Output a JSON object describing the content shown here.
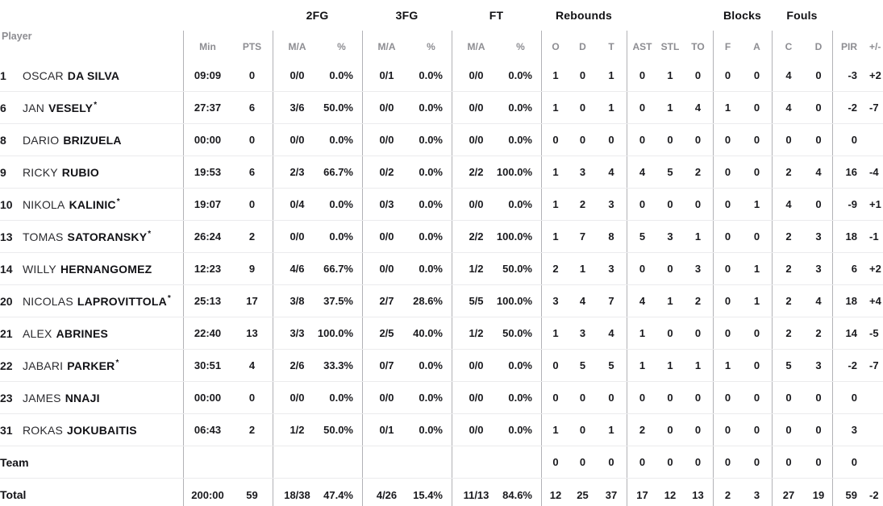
{
  "table": {
    "groups": {
      "fg2": "2FG",
      "fg3": "3FG",
      "ft": "FT",
      "rebounds": "Rebounds",
      "blocks": "Blocks",
      "fouls": "Fouls"
    },
    "header": {
      "player": "Player",
      "min": "Min",
      "pts": "PTS",
      "ma": "M/A",
      "pct": "%",
      "o": "O",
      "d": "D",
      "t": "T",
      "ast": "AST",
      "stl": "STL",
      "to": "TO",
      "f": "F",
      "a": "A",
      "c": "C",
      "pir": "PIR",
      "pm": "+/-"
    },
    "rows": [
      {
        "type": "player",
        "num": "1",
        "first": "OSCAR",
        "last": "DA SILVA",
        "starter": false,
        "min": "09:09",
        "pts": "0",
        "fg2": "0/0",
        "fg2p": "0.0%",
        "fg3": "0/1",
        "fg3p": "0.0%",
        "ft": "0/0",
        "ftp": "0.0%",
        "o": "1",
        "d": "0",
        "t": "1",
        "ast": "0",
        "stl": "1",
        "to": "0",
        "bf": "0",
        "ba": "0",
        "fc": "4",
        "fd": "0",
        "pir": "-3",
        "pm": "+2"
      },
      {
        "type": "player",
        "num": "6",
        "first": "JAN",
        "last": "VESELY",
        "starter": true,
        "min": "27:37",
        "pts": "6",
        "fg2": "3/6",
        "fg2p": "50.0%",
        "fg3": "0/0",
        "fg3p": "0.0%",
        "ft": "0/0",
        "ftp": "0.0%",
        "o": "1",
        "d": "0",
        "t": "1",
        "ast": "0",
        "stl": "1",
        "to": "4",
        "bf": "1",
        "ba": "0",
        "fc": "4",
        "fd": "0",
        "pir": "-2",
        "pm": "-7"
      },
      {
        "type": "player",
        "num": "8",
        "first": "DARIO",
        "last": "BRIZUELA",
        "starter": false,
        "min": "00:00",
        "pts": "0",
        "fg2": "0/0",
        "fg2p": "0.0%",
        "fg3": "0/0",
        "fg3p": "0.0%",
        "ft": "0/0",
        "ftp": "0.0%",
        "o": "0",
        "d": "0",
        "t": "0",
        "ast": "0",
        "stl": "0",
        "to": "0",
        "bf": "0",
        "ba": "0",
        "fc": "0",
        "fd": "0",
        "pir": "0",
        "pm": ""
      },
      {
        "type": "player",
        "num": "9",
        "first": "RICKY",
        "last": "RUBIO",
        "starter": false,
        "min": "19:53",
        "pts": "6",
        "fg2": "2/3",
        "fg2p": "66.7%",
        "fg3": "0/2",
        "fg3p": "0.0%",
        "ft": "2/2",
        "ftp": "100.0%",
        "o": "1",
        "d": "3",
        "t": "4",
        "ast": "4",
        "stl": "5",
        "to": "2",
        "bf": "0",
        "ba": "0",
        "fc": "2",
        "fd": "4",
        "pir": "16",
        "pm": "-4"
      },
      {
        "type": "player",
        "num": "10",
        "first": "NIKOLA",
        "last": "KALINIC",
        "starter": true,
        "min": "19:07",
        "pts": "0",
        "fg2": "0/4",
        "fg2p": "0.0%",
        "fg3": "0/3",
        "fg3p": "0.0%",
        "ft": "0/0",
        "ftp": "0.0%",
        "o": "1",
        "d": "2",
        "t": "3",
        "ast": "0",
        "stl": "0",
        "to": "0",
        "bf": "0",
        "ba": "1",
        "fc": "4",
        "fd": "0",
        "pir": "-9",
        "pm": "+1"
      },
      {
        "type": "player",
        "num": "13",
        "first": "TOMAS",
        "last": "SATORANSKY",
        "starter": true,
        "min": "26:24",
        "pts": "2",
        "fg2": "0/0",
        "fg2p": "0.0%",
        "fg3": "0/0",
        "fg3p": "0.0%",
        "ft": "2/2",
        "ftp": "100.0%",
        "o": "1",
        "d": "7",
        "t": "8",
        "ast": "5",
        "stl": "3",
        "to": "1",
        "bf": "0",
        "ba": "0",
        "fc": "2",
        "fd": "3",
        "pir": "18",
        "pm": "-1"
      },
      {
        "type": "player",
        "num": "14",
        "first": "WILLY",
        "last": "HERNANGOMEZ",
        "starter": false,
        "min": "12:23",
        "pts": "9",
        "fg2": "4/6",
        "fg2p": "66.7%",
        "fg3": "0/0",
        "fg3p": "0.0%",
        "ft": "1/2",
        "ftp": "50.0%",
        "o": "2",
        "d": "1",
        "t": "3",
        "ast": "0",
        "stl": "0",
        "to": "3",
        "bf": "0",
        "ba": "1",
        "fc": "2",
        "fd": "3",
        "pir": "6",
        "pm": "+2"
      },
      {
        "type": "player",
        "num": "20",
        "first": "NICOLAS",
        "last": "LAPROVITTOLA",
        "starter": true,
        "min": "25:13",
        "pts": "17",
        "fg2": "3/8",
        "fg2p": "37.5%",
        "fg3": "2/7",
        "fg3p": "28.6%",
        "ft": "5/5",
        "ftp": "100.0%",
        "o": "3",
        "d": "4",
        "t": "7",
        "ast": "4",
        "stl": "1",
        "to": "2",
        "bf": "0",
        "ba": "1",
        "fc": "2",
        "fd": "4",
        "pir": "18",
        "pm": "+4"
      },
      {
        "type": "player",
        "num": "21",
        "first": "ALEX",
        "last": "ABRINES",
        "starter": false,
        "min": "22:40",
        "pts": "13",
        "fg2": "3/3",
        "fg2p": "100.0%",
        "fg3": "2/5",
        "fg3p": "40.0%",
        "ft": "1/2",
        "ftp": "50.0%",
        "o": "1",
        "d": "3",
        "t": "4",
        "ast": "1",
        "stl": "0",
        "to": "0",
        "bf": "0",
        "ba": "0",
        "fc": "2",
        "fd": "2",
        "pir": "14",
        "pm": "-5"
      },
      {
        "type": "player",
        "num": "22",
        "first": "JABARI",
        "last": "PARKER",
        "starter": true,
        "min": "30:51",
        "pts": "4",
        "fg2": "2/6",
        "fg2p": "33.3%",
        "fg3": "0/7",
        "fg3p": "0.0%",
        "ft": "0/0",
        "ftp": "0.0%",
        "o": "0",
        "d": "5",
        "t": "5",
        "ast": "1",
        "stl": "1",
        "to": "1",
        "bf": "1",
        "ba": "0",
        "fc": "5",
        "fd": "3",
        "pir": "-2",
        "pm": "-7"
      },
      {
        "type": "player",
        "num": "23",
        "first": "JAMES",
        "last": "NNAJI",
        "starter": false,
        "min": "00:00",
        "pts": "0",
        "fg2": "0/0",
        "fg2p": "0.0%",
        "fg3": "0/0",
        "fg3p": "0.0%",
        "ft": "0/0",
        "ftp": "0.0%",
        "o": "0",
        "d": "0",
        "t": "0",
        "ast": "0",
        "stl": "0",
        "to": "0",
        "bf": "0",
        "ba": "0",
        "fc": "0",
        "fd": "0",
        "pir": "0",
        "pm": ""
      },
      {
        "type": "player",
        "num": "31",
        "first": "ROKAS",
        "last": "JOKUBAITIS",
        "starter": false,
        "min": "06:43",
        "pts": "2",
        "fg2": "1/2",
        "fg2p": "50.0%",
        "fg3": "0/1",
        "fg3p": "0.0%",
        "ft": "0/0",
        "ftp": "0.0%",
        "o": "1",
        "d": "0",
        "t": "1",
        "ast": "2",
        "stl": "0",
        "to": "0",
        "bf": "0",
        "ba": "0",
        "fc": "0",
        "fd": "0",
        "pir": "3",
        "pm": ""
      },
      {
        "type": "team",
        "label": "Team",
        "min": "",
        "pts": "",
        "fg2": "",
        "fg2p": "",
        "fg3": "",
        "fg3p": "",
        "ft": "",
        "ftp": "",
        "o": "0",
        "d": "0",
        "t": "0",
        "ast": "0",
        "stl": "0",
        "to": "0",
        "bf": "0",
        "ba": "0",
        "fc": "0",
        "fd": "0",
        "pir": "0",
        "pm": ""
      },
      {
        "type": "total",
        "label": "Total",
        "min": "200:00",
        "pts": "59",
        "fg2": "18/38",
        "fg2p": "47.4%",
        "fg3": "4/26",
        "fg3p": "15.4%",
        "ft": "11/13",
        "ftp": "84.6%",
        "o": "12",
        "d": "25",
        "t": "37",
        "ast": "17",
        "stl": "12",
        "to": "13",
        "bf": "2",
        "ba": "3",
        "fc": "27",
        "fd": "19",
        "pir": "59",
        "pm": "-2"
      }
    ]
  }
}
